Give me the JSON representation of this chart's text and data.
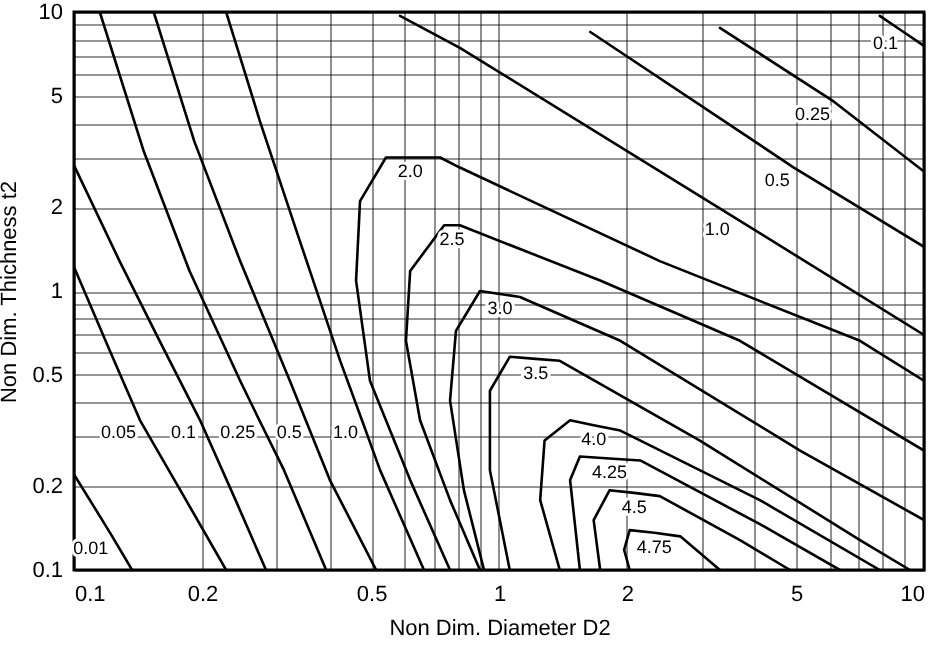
{
  "chart_data": {
    "type": "line",
    "xlabel": "Non Dim. Diameter D2",
    "ylabel": "Non Dim. Thichness t2",
    "log": "xy",
    "grid": true,
    "line_style": "solid",
    "xlim": [
      0.1,
      10
    ],
    "ylim": [
      0.1,
      10
    ],
    "xticks": [
      0.1,
      0.2,
      {
        "value": 0.3,
        "label": null
      },
      {
        "value": 0.4,
        "label": null
      },
      0.5,
      {
        "value": 0.6,
        "label": null
      },
      {
        "value": 0.7,
        "label": null
      },
      {
        "value": 0.8,
        "label": null
      },
      {
        "value": 0.9,
        "label": null
      },
      1,
      2,
      {
        "value": 3,
        "label": null
      },
      {
        "value": 4,
        "label": null
      },
      5,
      {
        "value": 6,
        "label": null
      },
      {
        "value": 7,
        "label": null
      },
      {
        "value": 8,
        "label": null
      },
      {
        "value": 9,
        "label": null
      },
      10
    ],
    "yticks": [
      0.1,
      0.2,
      {
        "value": 0.3,
        "label": null
      },
      {
        "value": 0.4,
        "label": null
      },
      0.5,
      {
        "value": 0.6,
        "label": null
      },
      {
        "value": 0.7,
        "label": null
      },
      {
        "value": 0.8,
        "label": null
      },
      {
        "value": 0.9,
        "label": null
      },
      1,
      2,
      {
        "value": 3,
        "label": null
      },
      {
        "value": 4,
        "label": null
      },
      5,
      {
        "value": 6,
        "label": null
      },
      {
        "value": 7,
        "label": null
      },
      {
        "value": 8,
        "label": null
      },
      {
        "value": 9,
        "label": null
      },
      10
    ],
    "series": [
      {
        "color": "#000000",
        "x": [
          0.1,
          0.115,
          0.123,
          0.137
        ],
        "values": [
          0.22,
          0.156,
          0.132,
          0.1
        ]
      },
      {
        "color": "#000000",
        "x": [
          0.1,
          0.1215,
          0.143,
          0.178,
          0.228
        ],
        "values": [
          1.22,
          0.61,
          0.344,
          0.193,
          0.1
        ]
      },
      {
        "color": "#000000",
        "x": [
          0.1,
          0.128,
          0.159,
          0.198,
          0.24,
          0.283
        ],
        "values": [
          2.82,
          1.28,
          0.663,
          0.344,
          0.178,
          0.1
        ]
      },
      {
        "color": "#000000",
        "x": [
          0.115,
          0.146,
          0.187,
          0.246,
          0.273,
          0.312,
          0.392
        ],
        "values": [
          10,
          3.16,
          1.18,
          0.477,
          0.344,
          0.228,
          0.1
        ]
      },
      {
        "color": "#000000",
        "x": [
          0.154,
          0.192,
          0.246,
          0.322,
          0.351,
          0.4,
          0.514
        ],
        "values": [
          10,
          3.43,
          1.28,
          0.477,
          0.344,
          0.21,
          0.1
        ]
      },
      {
        "color": "#000000",
        "x": [
          0.228,
          0.274,
          0.34,
          0.423,
          0.476,
          0.525,
          0.666
        ],
        "values": [
          10,
          4.05,
          1.51,
          0.562,
          0.344,
          0.228,
          0.1
        ]
      },
      {
        "color": "#000000",
        "x": [
          0.767,
          0.618,
          0.497,
          0.461,
          0.471,
          0.542,
          0.618,
          0.727,
          0.809,
          2.39,
          7.07,
          10
        ],
        "values": [
          0.1,
          0.21,
          0.477,
          1.09,
          2.1,
          3.01,
          3.01,
          3.01,
          2.77,
          1.28,
          0.663,
          0.477
        ]
      },
      {
        "color": "#000000",
        "x": [
          0.902,
          0.767,
          0.652,
          0.604,
          0.618,
          0.743,
          0.775,
          0.809,
          1.73,
          3.69,
          10
        ],
        "values": [
          0.1,
          0.178,
          0.344,
          0.663,
          1.18,
          1.72,
          1.72,
          1.72,
          1.09,
          0.663,
          0.268
        ]
      },
      {
        "color": "#000000",
        "x": [
          0.922,
          0.827,
          0.767,
          0.792,
          0.902,
          1.005,
          1.12,
          1.93,
          5.11,
          10
        ],
        "values": [
          0.1,
          0.193,
          0.405,
          0.72,
          1,
          0.976,
          0.952,
          0.663,
          0.268,
          0.151
        ]
      },
      {
        "color": "#000000",
        "x": [
          1.06,
          0.952,
          0.952,
          1.06,
          1.22,
          1.39,
          2.97,
          7.07,
          9.27
        ],
        "values": [
          0.1,
          0.228,
          0.439,
          0.581,
          0.571,
          0.562,
          0.291,
          0.128,
          0.1
        ]
      },
      {
        "color": "#000000",
        "x": [
          1.39,
          1.25,
          1.28,
          1.47,
          1.67,
          1.93,
          4.11,
          7.87
        ],
        "values": [
          0.1,
          0.178,
          0.291,
          0.344,
          0.33,
          0.316,
          0.178,
          0.1
        ]
      },
      {
        "color": "#000000",
        "x": [
          1.55,
          1.47,
          1.55,
          1.82,
          2.15,
          4.11,
          6.34
        ],
        "values": [
          0.1,
          0.21,
          0.255,
          0.251,
          0.247,
          0.146,
          0.1
        ]
      },
      {
        "color": "#000000",
        "x": [
          1.73,
          1.67,
          1.82,
          2.08,
          2.39,
          3.69,
          4.84
        ],
        "values": [
          0.1,
          0.151,
          0.193,
          0.189,
          0.184,
          0.128,
          0.1
        ]
      },
      {
        "color": "#000000",
        "x": [
          2.03,
          1.97,
          2.03,
          2.32,
          2.67,
          3.31
        ],
        "values": [
          0.1,
          0.118,
          0.139,
          0.136,
          0.132,
          0.1
        ]
      },
      {
        "color": "#000000",
        "x": [
          0.585,
          0.809,
          3.57,
          10
        ],
        "values": [
          9.68,
          7.44,
          1.84,
          0.696
        ]
      },
      {
        "color": "#000000",
        "x": [
          1.64,
          4.94,
          10
        ],
        "values": [
          8.48,
          2.77,
          1.44
        ]
      },
      {
        "color": "#000000",
        "x": [
          3.31,
          6.14,
          10
        ],
        "values": [
          8.77,
          4.77,
          2.68
        ]
      },
      {
        "color": "#000000",
        "x": [
          7.87,
          8.88,
          10
        ],
        "values": [
          9.68,
          8.55,
          7.56
        ]
      }
    ],
    "annotations": [
      {
        "text": "0.01",
        "x": 0.123,
        "y": 0.132
      },
      {
        "text": "0.05",
        "x": 0.143,
        "y": 0.344
      },
      {
        "text": "0.1",
        "x": 0.198,
        "y": 0.344
      },
      {
        "text": "0.25",
        "x": 0.273,
        "y": 0.344
      },
      {
        "text": "0.5",
        "x": 0.351,
        "y": 0.344
      },
      {
        "text": "1.0",
        "x": 0.476,
        "y": 0.344
      },
      {
        "text": "2.0",
        "x": 0.618,
        "y": 3.01
      },
      {
        "text": "2.5",
        "x": 0.775,
        "y": 1.72
      },
      {
        "text": "3.0",
        "x": 1.005,
        "y": 0.976
      },
      {
        "text": "3.5",
        "x": 1.22,
        "y": 0.571
      },
      {
        "text": "4.0",
        "x": 1.67,
        "y": 0.33
      },
      {
        "text": "4.25",
        "x": 1.82,
        "y": 0.251
      },
      {
        "text": "4.5",
        "x": 2.08,
        "y": 0.189
      },
      {
        "text": "4.75",
        "x": 2.32,
        "y": 0.136
      },
      {
        "text": "1.0",
        "x": 3.57,
        "y": 1.84
      },
      {
        "text": "0.5",
        "x": 4.94,
        "y": 2.77
      },
      {
        "text": "0.25",
        "x": 6.14,
        "y": 4.77
      },
      {
        "text": "0.1",
        "x": 8.88,
        "y": 8.55
      }
    ]
  }
}
